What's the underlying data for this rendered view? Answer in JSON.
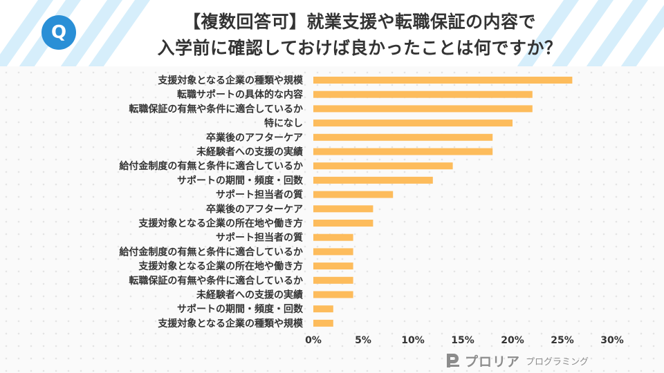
{
  "badge": "Q",
  "title": {
    "line1": "【複数回答可】就業支援や転職保証の内容で",
    "line2": "入学前に確認しておけば良かったことは何ですか？"
  },
  "logo": {
    "main": "プロリア",
    "sub": "プログラミング",
    "icon": "proria-p-icon"
  },
  "colors": {
    "bar": "#fdbc5c",
    "stripe": "#d6eefb",
    "badge": "#2a8fd6"
  },
  "chart_data": {
    "type": "bar",
    "orientation": "horizontal",
    "categories": [
      "支援対象となる企業の種類や規模",
      "転職サポートの具体的な内容",
      "転職保証の有無や条件に適合しているか",
      "特になし",
      "卒業後のアフターケア",
      "未経験者への支援の実績",
      "給付金制度の有無と条件に適合しているか",
      "サポートの期間・頻度・回数",
      "サポート担当者の質",
      "卒業後のアフターケア",
      "支援対象となる企業の所在地や働き方",
      "サポート担当者の質",
      "給付金制度の有無と条件に適合しているか",
      "支援対象となる企業の所在地や働き方",
      "転職保証の有無や条件に適合しているか",
      "未経験者への支援の実績",
      "サポートの期間・頻度・回数",
      "支援対象となる企業の種類や規模"
    ],
    "values": [
      26,
      22,
      22,
      20,
      18,
      18,
      14,
      12,
      8,
      6,
      6,
      4,
      4,
      4,
      4,
      4,
      2,
      2
    ],
    "xlim": [
      0,
      30
    ],
    "xticks": [
      "0%",
      "5%",
      "10%",
      "15%",
      "20%",
      "25%",
      "30%"
    ],
    "xlabel": "",
    "ylabel": "",
    "grid": true
  }
}
